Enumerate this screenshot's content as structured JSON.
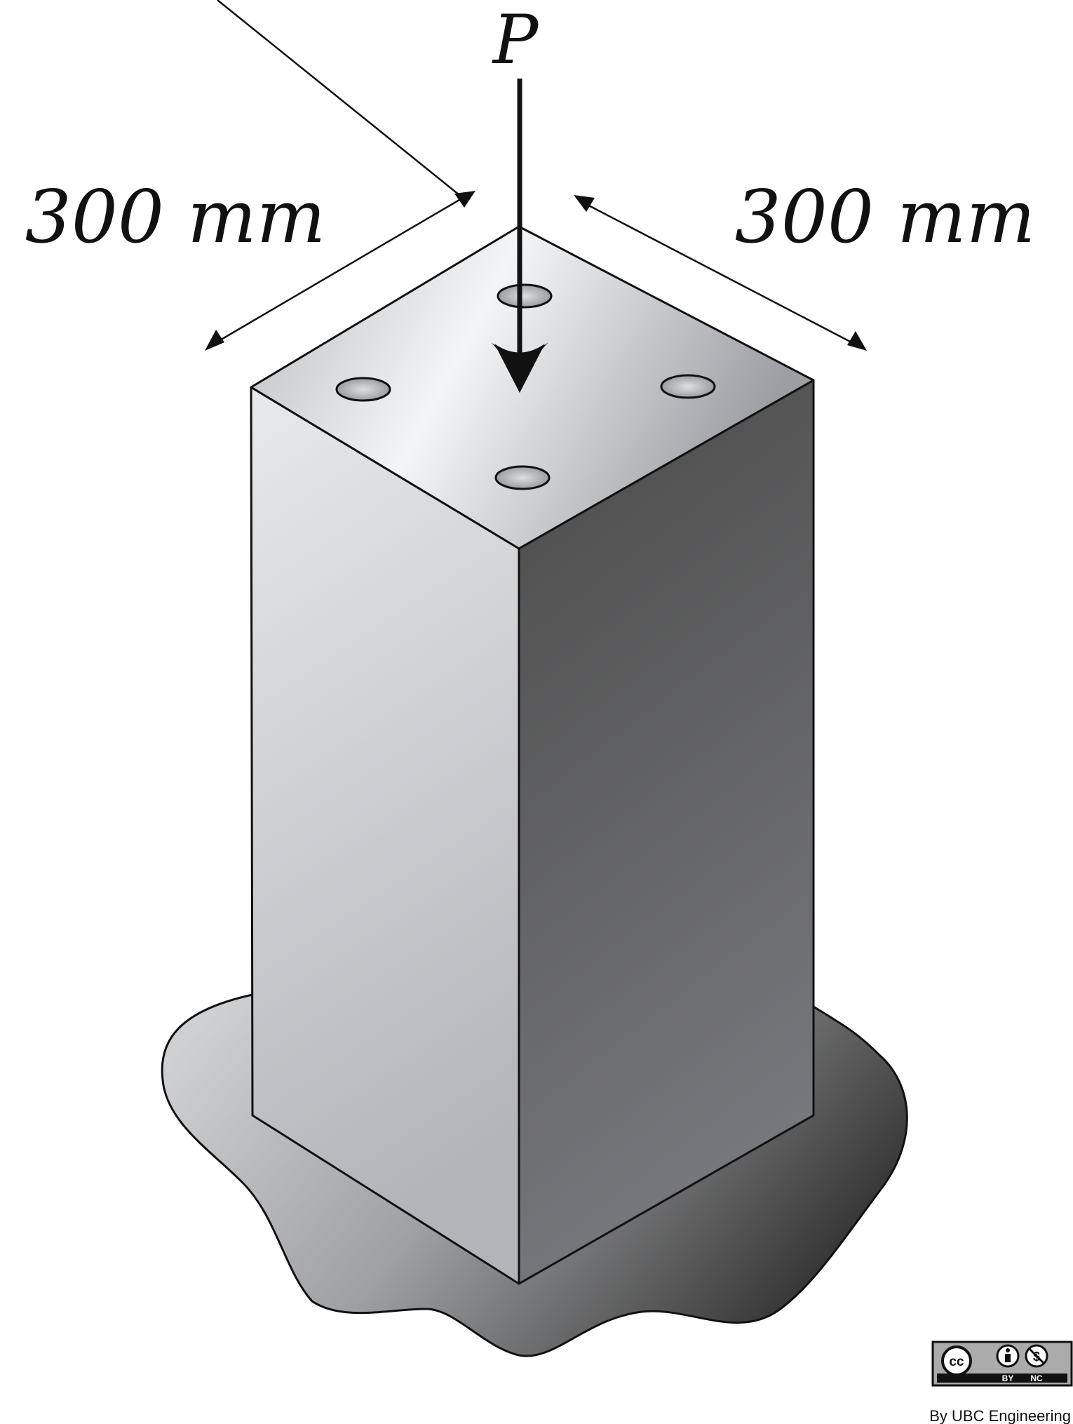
{
  "diagram": {
    "load_label": "P",
    "dimension_left": "300 mm",
    "dimension_right": "300 mm"
  },
  "license": {
    "cc_mark": "cc",
    "by_label": "BY",
    "nc_label": "NC",
    "attribution": "By UBC Engineering"
  },
  "colors": {
    "outline": "#111111",
    "face_left_light": "#e6e7e9",
    "face_left_dark": "#b9babc",
    "face_right_light": "#4e4e4e",
    "face_right_dark": "#76777a",
    "top_light": "#f5f6f7",
    "top_dark": "#9ea0a3",
    "ground_light": "#c8c9cb",
    "ground_dark": "#2f2f2f"
  }
}
